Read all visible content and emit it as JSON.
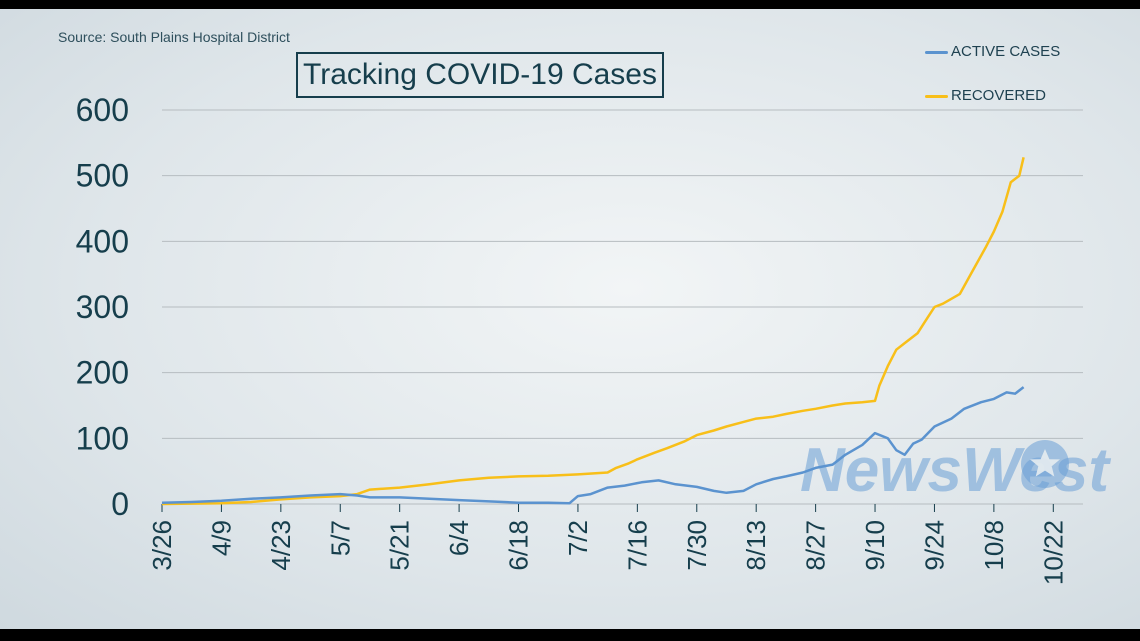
{
  "source_text": "Source: South Plains Hospital District",
  "chart_data": {
    "type": "line",
    "title": "Tracking COVID-19 Cases",
    "xlabel": "",
    "ylabel": "",
    "x_ticks": [
      "3/26",
      "4/9",
      "4/23",
      "5/7",
      "5/21",
      "6/4",
      "6/18",
      "7/2",
      "7/16",
      "7/30",
      "8/13",
      "8/27",
      "9/10",
      "9/24",
      "10/8",
      "10/22"
    ],
    "xlim": [
      "3/26",
      "10/29"
    ],
    "ylim": [
      0,
      600
    ],
    "y_ticks": [
      0,
      100,
      200,
      300,
      400,
      500,
      600
    ],
    "grid": true,
    "legend": "top-right",
    "watermark": "NewsWest",
    "colors": {
      "active": "#5b93cf",
      "recovered": "#f8bf19",
      "axis_text": "#163e4c",
      "grid": "#b6bcc0"
    },
    "series": [
      {
        "name": "ACTIVE CASES",
        "color": "#5b93cf",
        "points": [
          [
            "3/26",
            2
          ],
          [
            "4/2",
            3
          ],
          [
            "4/9",
            5
          ],
          [
            "4/16",
            8
          ],
          [
            "4/23",
            10
          ],
          [
            "4/30",
            13
          ],
          [
            "5/7",
            15
          ],
          [
            "5/11",
            13
          ],
          [
            "5/14",
            10
          ],
          [
            "5/21",
            10
          ],
          [
            "5/28",
            8
          ],
          [
            "6/4",
            6
          ],
          [
            "6/11",
            4
          ],
          [
            "6/18",
            2
          ],
          [
            "6/25",
            2
          ],
          [
            "6/30",
            1
          ],
          [
            "7/2",
            12
          ],
          [
            "7/5",
            15
          ],
          [
            "7/9",
            25
          ],
          [
            "7/13",
            28
          ],
          [
            "7/17",
            33
          ],
          [
            "7/21",
            36
          ],
          [
            "7/25",
            30
          ],
          [
            "7/30",
            26
          ],
          [
            "8/3",
            20
          ],
          [
            "8/6",
            17
          ],
          [
            "8/10",
            20
          ],
          [
            "8/13",
            30
          ],
          [
            "8/17",
            38
          ],
          [
            "8/20",
            42
          ],
          [
            "8/24",
            48
          ],
          [
            "8/27",
            55
          ],
          [
            "8/31",
            60
          ],
          [
            "9/3",
            75
          ],
          [
            "9/7",
            90
          ],
          [
            "9/10",
            108
          ],
          [
            "9/13",
            100
          ],
          [
            "9/15",
            82
          ],
          [
            "9/17",
            75
          ],
          [
            "9/19",
            92
          ],
          [
            "9/21",
            98
          ],
          [
            "9/24",
            118
          ],
          [
            "9/28",
            130
          ],
          [
            "10/1",
            145
          ],
          [
            "10/5",
            155
          ],
          [
            "10/8",
            160
          ],
          [
            "10/11",
            170
          ],
          [
            "10/13",
            168
          ],
          [
            "10/15",
            178
          ]
        ]
      },
      {
        "name": "RECOVERED",
        "color": "#f8bf19",
        "points": [
          [
            "3/26",
            0
          ],
          [
            "4/9",
            1
          ],
          [
            "4/16",
            3
          ],
          [
            "4/23",
            7
          ],
          [
            "4/30",
            10
          ],
          [
            "5/7",
            12
          ],
          [
            "5/11",
            15
          ],
          [
            "5/14",
            22
          ],
          [
            "5/21",
            25
          ],
          [
            "5/28",
            30
          ],
          [
            "6/4",
            36
          ],
          [
            "6/11",
            40
          ],
          [
            "6/18",
            42
          ],
          [
            "6/25",
            43
          ],
          [
            "7/2",
            45
          ],
          [
            "7/9",
            48
          ],
          [
            "7/11",
            55
          ],
          [
            "7/14",
            62
          ],
          [
            "7/16",
            68
          ],
          [
            "7/20",
            78
          ],
          [
            "7/23",
            85
          ],
          [
            "7/27",
            95
          ],
          [
            "7/30",
            105
          ],
          [
            "8/3",
            112
          ],
          [
            "8/6",
            118
          ],
          [
            "8/10",
            125
          ],
          [
            "8/13",
            130
          ],
          [
            "8/17",
            133
          ],
          [
            "8/20",
            137
          ],
          [
            "8/24",
            142
          ],
          [
            "8/27",
            145
          ],
          [
            "8/31",
            150
          ],
          [
            "9/3",
            153
          ],
          [
            "9/7",
            155
          ],
          [
            "9/10",
            157
          ],
          [
            "9/11",
            180
          ],
          [
            "9/13",
            210
          ],
          [
            "9/15",
            235
          ],
          [
            "9/17",
            245
          ],
          [
            "9/20",
            260
          ],
          [
            "9/22",
            280
          ],
          [
            "9/24",
            300
          ],
          [
            "9/26",
            305
          ],
          [
            "9/30",
            320
          ],
          [
            "10/3",
            355
          ],
          [
            "10/6",
            390
          ],
          [
            "10/8",
            415
          ],
          [
            "10/10",
            445
          ],
          [
            "10/12",
            490
          ],
          [
            "10/14",
            500
          ],
          [
            "10/15",
            528
          ]
        ]
      }
    ]
  }
}
